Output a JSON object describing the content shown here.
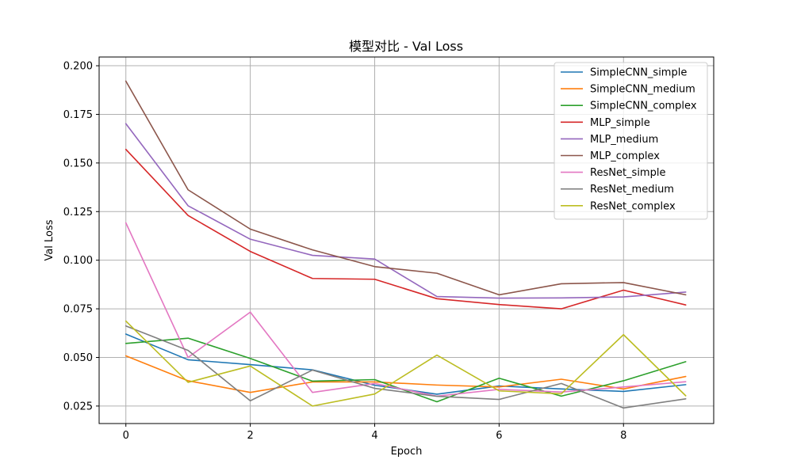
{
  "chart_data": {
    "type": "line",
    "title": "模型对比 - Val Loss",
    "xlabel": "Epoch",
    "ylabel": "Val Loss",
    "xlim": [
      -0.43,
      9.45
    ],
    "ylim": [
      0.016,
      0.2045
    ],
    "xticks": [
      0,
      2,
      4,
      6,
      8
    ],
    "yticks": [
      0.025,
      0.05,
      0.075,
      0.1,
      0.125,
      0.15,
      0.175,
      0.2
    ],
    "ytick_labels": [
      "0.025",
      "0.050",
      "0.075",
      "0.100",
      "0.125",
      "0.150",
      "0.175",
      "0.200"
    ],
    "grid": true,
    "legend_position": "top-right",
    "x": [
      0,
      1,
      2,
      3,
      4,
      5,
      6,
      7,
      8,
      9
    ],
    "series": [
      {
        "name": "SimpleCNN_simple",
        "color": "#1f77b4",
        "values": [
          0.062,
          0.0488,
          0.0463,
          0.0436,
          0.0357,
          0.0311,
          0.0353,
          0.0338,
          0.0325,
          0.036
        ]
      },
      {
        "name": "SimpleCNN_medium",
        "color": "#ff7f0e",
        "values": [
          0.0508,
          0.038,
          0.032,
          0.0374,
          0.0374,
          0.0358,
          0.0348,
          0.0388,
          0.0338,
          0.0402
        ]
      },
      {
        "name": "SimpleCNN_complex",
        "color": "#2ca02c",
        "values": [
          0.0572,
          0.0599,
          0.0495,
          0.0378,
          0.0386,
          0.0272,
          0.0393,
          0.0301,
          0.038,
          0.0478
        ]
      },
      {
        "name": "MLP_simple",
        "color": "#d62728",
        "values": [
          0.157,
          0.123,
          0.1045,
          0.0906,
          0.0902,
          0.0802,
          0.0772,
          0.075,
          0.0846,
          0.077
        ]
      },
      {
        "name": "MLP_medium",
        "color": "#9467bd",
        "values": [
          0.1702,
          0.128,
          0.1108,
          0.1025,
          0.1006,
          0.0813,
          0.0805,
          0.0806,
          0.0811,
          0.0836
        ]
      },
      {
        "name": "MLP_complex",
        "color": "#8c564b",
        "values": [
          0.1921,
          0.1362,
          0.116,
          0.1053,
          0.0967,
          0.0933,
          0.0822,
          0.0879,
          0.0885,
          0.0822
        ]
      },
      {
        "name": "ResNet_simple",
        "color": "#e377c2",
        "values": [
          0.1192,
          0.05,
          0.0733,
          0.032,
          0.0366,
          0.0301,
          0.0336,
          0.0322,
          0.0348,
          0.0375
        ]
      },
      {
        "name": "ResNet_medium",
        "color": "#7f7f7f",
        "values": [
          0.0662,
          0.0536,
          0.0277,
          0.0435,
          0.0341,
          0.03,
          0.0284,
          0.0366,
          0.024,
          0.0287
        ]
      },
      {
        "name": "ResNet_complex",
        "color": "#bcbd22",
        "values": [
          0.0687,
          0.0372,
          0.0456,
          0.025,
          0.0312,
          0.0512,
          0.0328,
          0.0313,
          0.0617,
          0.0303
        ]
      }
    ]
  }
}
